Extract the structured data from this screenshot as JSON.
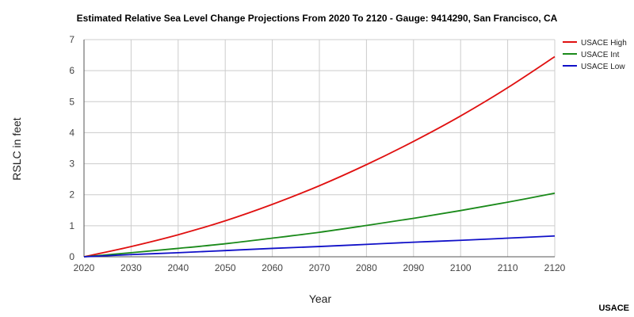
{
  "chart_data": {
    "type": "line",
    "title": "Estimated Relative Sea Level Change Projections From 2020 To 2120 - Gauge: 9414290, San Francisco, CA",
    "xlabel": "Year",
    "ylabel": "RSLC in feet",
    "xlim": [
      2020,
      2120
    ],
    "ylim": [
      0,
      7
    ],
    "x_ticks": [
      "2020",
      "2030",
      "2040",
      "2050",
      "2060",
      "2070",
      "2080",
      "2090",
      "2100",
      "2110",
      "2120"
    ],
    "y_ticks": [
      "0",
      "1",
      "2",
      "3",
      "4",
      "5",
      "6",
      "7"
    ],
    "grid": "both",
    "legend_position": "top-right",
    "x": [
      2020,
      2030,
      2040,
      2050,
      2060,
      2070,
      2080,
      2090,
      2100,
      2110,
      2120
    ],
    "series": [
      {
        "name": "USACE High",
        "color": "#e01010",
        "values": [
          0.0,
          0.33,
          0.71,
          1.16,
          1.69,
          2.29,
          2.97,
          3.72,
          4.54,
          5.45,
          6.45
        ]
      },
      {
        "name": "USACE Int",
        "color": "#1a8a1a",
        "values": [
          0.0,
          0.13,
          0.27,
          0.42,
          0.6,
          0.79,
          1.01,
          1.24,
          1.49,
          1.76,
          2.05
        ]
      },
      {
        "name": "USACE Low",
        "color": "#1010c8",
        "values": [
          0.0,
          0.07,
          0.13,
          0.2,
          0.27,
          0.33,
          0.4,
          0.47,
          0.53,
          0.6,
          0.67
        ]
      }
    ]
  },
  "source": "USACE"
}
